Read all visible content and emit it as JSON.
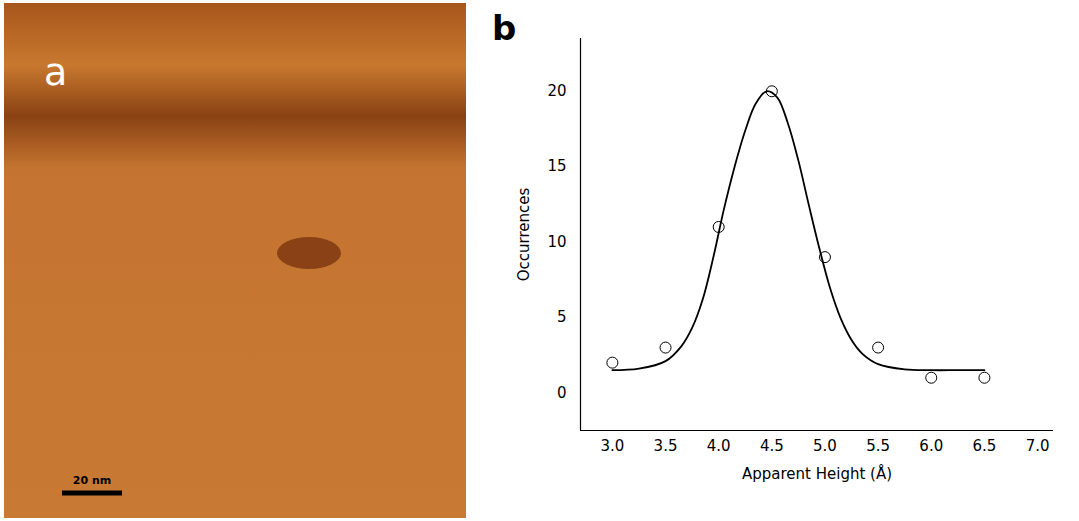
{
  "chart_data": [
    {
      "type": "image",
      "title": "a",
      "annotations": [
        "20 nm"
      ]
    },
    {
      "type": "scatter",
      "title": "b",
      "x_label": "Apparent Height (Å)",
      "y_label": "Occurrences",
      "xlim": [
        2.7,
        7.15
      ],
      "xticks": [
        {
          "value": 3,
          "label": "3.0"
        },
        3.5,
        {
          "value": 4,
          "label": "4.0"
        },
        4.5,
        {
          "value": 5,
          "label": "5.0"
        },
        5.5,
        {
          "value": 6,
          "label": "6.0"
        },
        6.5,
        {
          "value": 7,
          "label": "7.0"
        }
      ],
      "ylim": [
        -2.5,
        23.5
      ],
      "yticks": [
        0,
        5,
        10,
        15,
        20
      ],
      "series": [
        {
          "type": "scatter",
          "marker": "circle",
          "color": "#000000",
          "x": [
            3.0,
            3.5,
            4.0,
            4.5,
            5.0,
            5.5,
            6.0,
            6.5
          ],
          "values": [
            2,
            3,
            11,
            20,
            9,
            3,
            1,
            1
          ]
        },
        {
          "type": "line",
          "line_style": "solid",
          "color": "#000000",
          "x": [
            3.0,
            3.25,
            3.5,
            3.65,
            3.75,
            3.85,
            3.95,
            4.05,
            4.15,
            4.25,
            4.35,
            4.45,
            4.55,
            4.65,
            4.75,
            4.85,
            4.95,
            5.05,
            5.15,
            5.25,
            5.35,
            5.5,
            5.75,
            6.0,
            6.25,
            6.5
          ],
          "values": [
            1.5,
            1.6,
            2.1,
            3.1,
            4.3,
            6.2,
            9.0,
            12.2,
            15.0,
            17.4,
            19.2,
            20.0,
            19.6,
            17.9,
            15.4,
            12.4,
            9.5,
            6.9,
            4.9,
            3.5,
            2.6,
            1.9,
            1.55,
            1.5,
            1.5,
            1.5
          ]
        }
      ]
    }
  ]
}
